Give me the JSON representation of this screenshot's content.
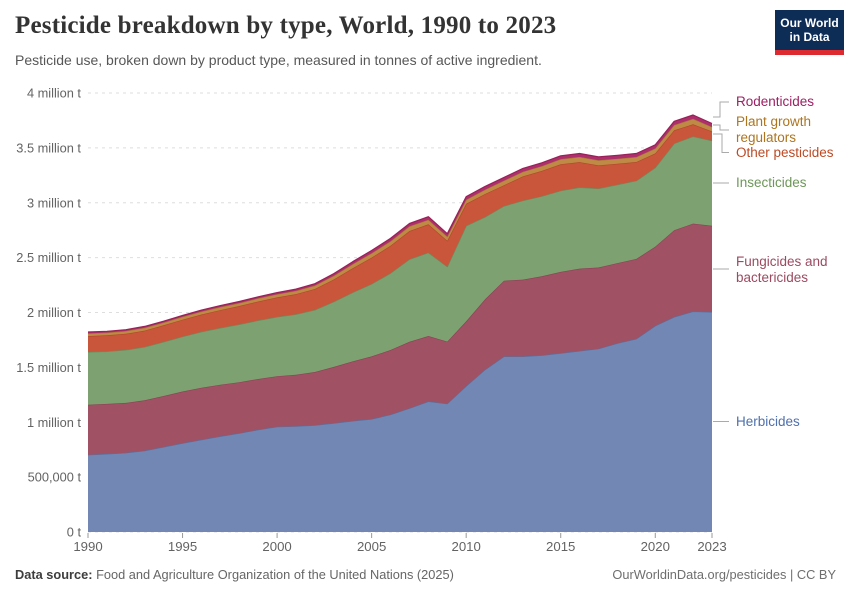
{
  "header": {
    "title": "Pesticide breakdown by type, World, 1990 to 2023",
    "subtitle": "Pesticide use, broken down by product type, measured in tonnes of active ingredient.",
    "logo": {
      "line1": "Our World",
      "line2": "in Data",
      "bg_color": "#0d2c56",
      "bar_color": "#dc2a30"
    }
  },
  "footer": {
    "source_label": "Data source:",
    "source_text": " Food and Agriculture Organization of the United Nations (2025)",
    "credit": "OurWorldinData.org/pesticides | CC BY"
  },
  "chart_data": {
    "type": "area",
    "stacked": true,
    "title": "Pesticide breakdown by type, World, 1990 to 2023",
    "xlabel": "",
    "ylabel": "tonnes of active ingredient",
    "unit": "tonnes",
    "grid": "horizontal dashed",
    "legend_position": "right",
    "ylim": [
      0,
      4000000
    ],
    "x": [
      1990,
      1991,
      1992,
      1993,
      1994,
      1995,
      1996,
      1997,
      1998,
      1999,
      2000,
      2001,
      2002,
      2003,
      2004,
      2005,
      2006,
      2007,
      2008,
      2009,
      2010,
      2011,
      2012,
      2013,
      2014,
      2015,
      2016,
      2017,
      2018,
      2019,
      2020,
      2021,
      2022,
      2023
    ],
    "x_ticks": [
      1990,
      1995,
      2000,
      2005,
      2010,
      2015,
      2020,
      2023
    ],
    "y_ticks": [
      {
        "value": 0,
        "label": "0 t"
      },
      {
        "value": 500000,
        "label": "500,000 t"
      },
      {
        "value": 1000000,
        "label": "1 million t"
      },
      {
        "value": 1500000,
        "label": "1.5 million t"
      },
      {
        "value": 2000000,
        "label": "2 million t"
      },
      {
        "value": 2500000,
        "label": "2.5 million t"
      },
      {
        "value": 3000000,
        "label": "3 million t"
      },
      {
        "value": 3500000,
        "label": "3.5 million t"
      },
      {
        "value": 4000000,
        "label": "4 million t"
      }
    ],
    "series": [
      {
        "name": "Herbicides",
        "color": "#7287b4",
        "edge": "#5a709f",
        "label_color": "#4e70ae",
        "values": [
          703000,
          712000,
          722000,
          742000,
          775000,
          810000,
          842000,
          872000,
          900000,
          932000,
          960000,
          964000,
          974000,
          992000,
          1012000,
          1030000,
          1070000,
          1128000,
          1190000,
          1170000,
          1330000,
          1480000,
          1600000,
          1600000,
          1610000,
          1630000,
          1650000,
          1670000,
          1720000,
          1760000,
          1880000,
          1960000,
          2010000,
          2005000
        ]
      },
      {
        "name": "Fungicides and bactericides",
        "color": "#a05164",
        "edge": "#8b4255",
        "label_color": "#9c4a60",
        "values": [
          457000,
          455000,
          454000,
          458000,
          464000,
          470000,
          472000,
          470000,
          465000,
          462000,
          460000,
          468000,
          484000,
          512000,
          542000,
          570000,
          588000,
          605000,
          596000,
          565000,
          590000,
          640000,
          690000,
          700000,
          720000,
          740000,
          750000,
          740000,
          730000,
          728000,
          720000,
          790000,
          800000,
          785000
        ]
      },
      {
        "name": "Insecticides",
        "color": "#7ea172",
        "edge": "#6b8e5f",
        "label_color": "#6d9758",
        "values": [
          480000,
          479000,
          483000,
          487000,
          493000,
          500000,
          510000,
          518000,
          527000,
          534000,
          540000,
          552000,
          566000,
          594000,
          628000,
          660000,
          700000,
          752000,
          760000,
          682000,
          870000,
          750000,
          680000,
          720000,
          730000,
          740000,
          740000,
          720000,
          715000,
          713000,
          720000,
          790000,
          795000,
          775000
        ]
      },
      {
        "name": "Other pesticides",
        "color": "#c9563a",
        "edge": "#b2472c",
        "label_color": "#bc4a24",
        "values": [
          145000,
          146000,
          147000,
          148000,
          151000,
          154000,
          158000,
          162000,
          167000,
          172000,
          178000,
          184000,
          190000,
          203000,
          222000,
          240000,
          250000,
          258000,
          258000,
          236000,
          200000,
          210000,
          190000,
          220000,
          230000,
          240000,
          230000,
          210000,
          190000,
          170000,
          130000,
          120000,
          110000,
          85000
        ]
      },
      {
        "name": "Plant growth regulators",
        "color": "#bf8a45",
        "edge": "#aa7734",
        "label_color": "#ae751f",
        "values": [
          25000,
          25000,
          25000,
          26000,
          26000,
          27000,
          27000,
          28000,
          28000,
          29000,
          29000,
          30000,
          32000,
          34000,
          37000,
          40000,
          41000,
          42000,
          42000,
          39000,
          38000,
          40000,
          42000,
          43000,
          44000,
          48000,
          48000,
          47000,
          46000,
          46000,
          45000,
          48000,
          50000,
          40000
        ]
      },
      {
        "name": "Rodenticides",
        "color": "#ad2f6d",
        "edge": "#992157",
        "label_color": "#9c2063",
        "values": [
          12000,
          12000,
          12000,
          12000,
          12000,
          12000,
          13000,
          13000,
          13000,
          14000,
          14000,
          15000,
          16000,
          19000,
          22000,
          25000,
          26000,
          26000,
          27000,
          26000,
          28000,
          29000,
          29000,
          30000,
          30000,
          30000,
          31000,
          31000,
          31000,
          32000,
          33000,
          34000,
          35000,
          32000
        ]
      }
    ]
  }
}
